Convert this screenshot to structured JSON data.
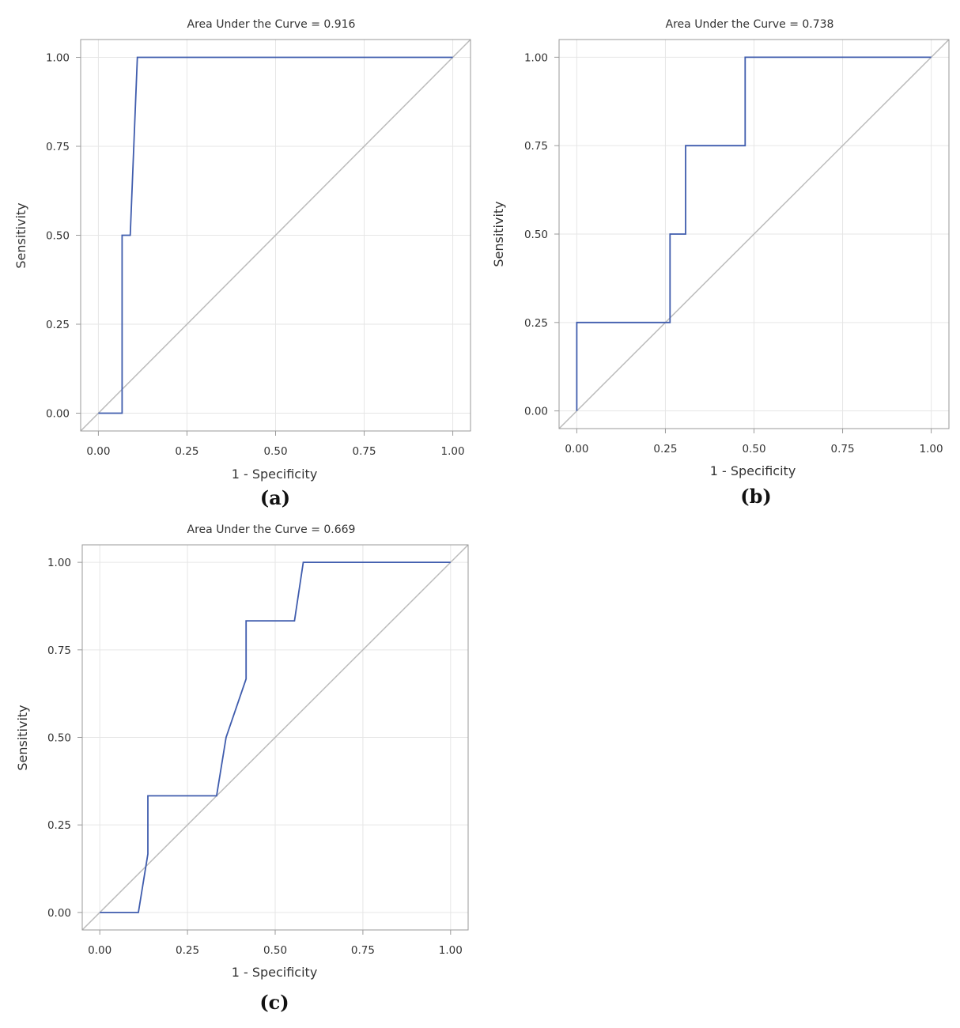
{
  "chart_data": [
    {
      "type": "line",
      "panel_label": "(a)",
      "title": "Area Under the Curve = 0.916",
      "xlabel": "1 - Specificity",
      "ylabel": "Sensitivity",
      "xlim": [
        -0.05,
        1.05
      ],
      "ylim": [
        -0.05,
        1.05
      ],
      "xticks": [
        "0.00",
        "0.25",
        "0.50",
        "0.75",
        "1.00"
      ],
      "yticks": [
        "0.00",
        "0.25",
        "0.50",
        "0.75",
        "1.00"
      ],
      "grid": true,
      "series": [
        {
          "name": "ROC curve",
          "x": [
            0,
            0.067,
            0.067,
            0.09,
            0.11,
            1.0
          ],
          "y": [
            0,
            0,
            0.5,
            0.5,
            1.0,
            1.0
          ]
        },
        {
          "name": "reference",
          "x": [
            -0.05,
            1.05
          ],
          "y": [
            -0.05,
            1.05
          ]
        }
      ],
      "colors": {
        "roc": "#3f5cad",
        "reference": "#bbbbbb",
        "grid": "#e6e6e6",
        "frame": "#9a9a9a"
      }
    },
    {
      "type": "line",
      "panel_label": "(b)",
      "title": "Area Under the Curve = 0.738",
      "xlabel": "1 - Specificity",
      "ylabel": "Sensitivity",
      "xlim": [
        -0.05,
        1.05
      ],
      "ylim": [
        -0.05,
        1.05
      ],
      "xticks": [
        "0.00",
        "0.25",
        "0.50",
        "0.75",
        "1.00"
      ],
      "yticks": [
        "0.00",
        "0.25",
        "0.50",
        "0.75",
        "1.00"
      ],
      "grid": true,
      "series": [
        {
          "name": "ROC curve",
          "x": [
            0,
            0,
            0.263,
            0.263,
            0.307,
            0.307,
            0.475,
            0.475,
            1.0
          ],
          "y": [
            0,
            0.25,
            0.25,
            0.5,
            0.5,
            0.75,
            0.75,
            1.0,
            1.0
          ]
        },
        {
          "name": "reference",
          "x": [
            -0.05,
            1.05
          ],
          "y": [
            -0.05,
            1.05
          ]
        }
      ],
      "colors": {
        "roc": "#3f5cad",
        "reference": "#bbbbbb",
        "grid": "#e6e6e6",
        "frame": "#9a9a9a"
      }
    },
    {
      "type": "line",
      "panel_label": "(c)",
      "title": "Area Under the Curve = 0.669",
      "xlabel": "1 - Specificity",
      "ylabel": "Sensitivity",
      "xlim": [
        -0.05,
        1.05
      ],
      "ylim": [
        -0.05,
        1.05
      ],
      "xticks": [
        "0.00",
        "0.25",
        "0.50",
        "0.75",
        "1.00"
      ],
      "yticks": [
        "0.00",
        "0.25",
        "0.50",
        "0.75",
        "1.00"
      ],
      "grid": true,
      "series": [
        {
          "name": "ROC curve",
          "x": [
            0,
            0.11,
            0.137,
            0.137,
            0.333,
            0.36,
            0.417,
            0.417,
            0.555,
            0.58,
            1.0
          ],
          "y": [
            0,
            0,
            0.167,
            0.333,
            0.333,
            0.5,
            0.667,
            0.833,
            0.833,
            1.0,
            1.0
          ]
        },
        {
          "name": "reference",
          "x": [
            -0.05,
            1.05
          ],
          "y": [
            -0.05,
            1.05
          ]
        }
      ],
      "colors": {
        "roc": "#3f5cad",
        "reference": "#bbbbbb",
        "grid": "#e6e6e6",
        "frame": "#9a9a9a"
      }
    }
  ]
}
